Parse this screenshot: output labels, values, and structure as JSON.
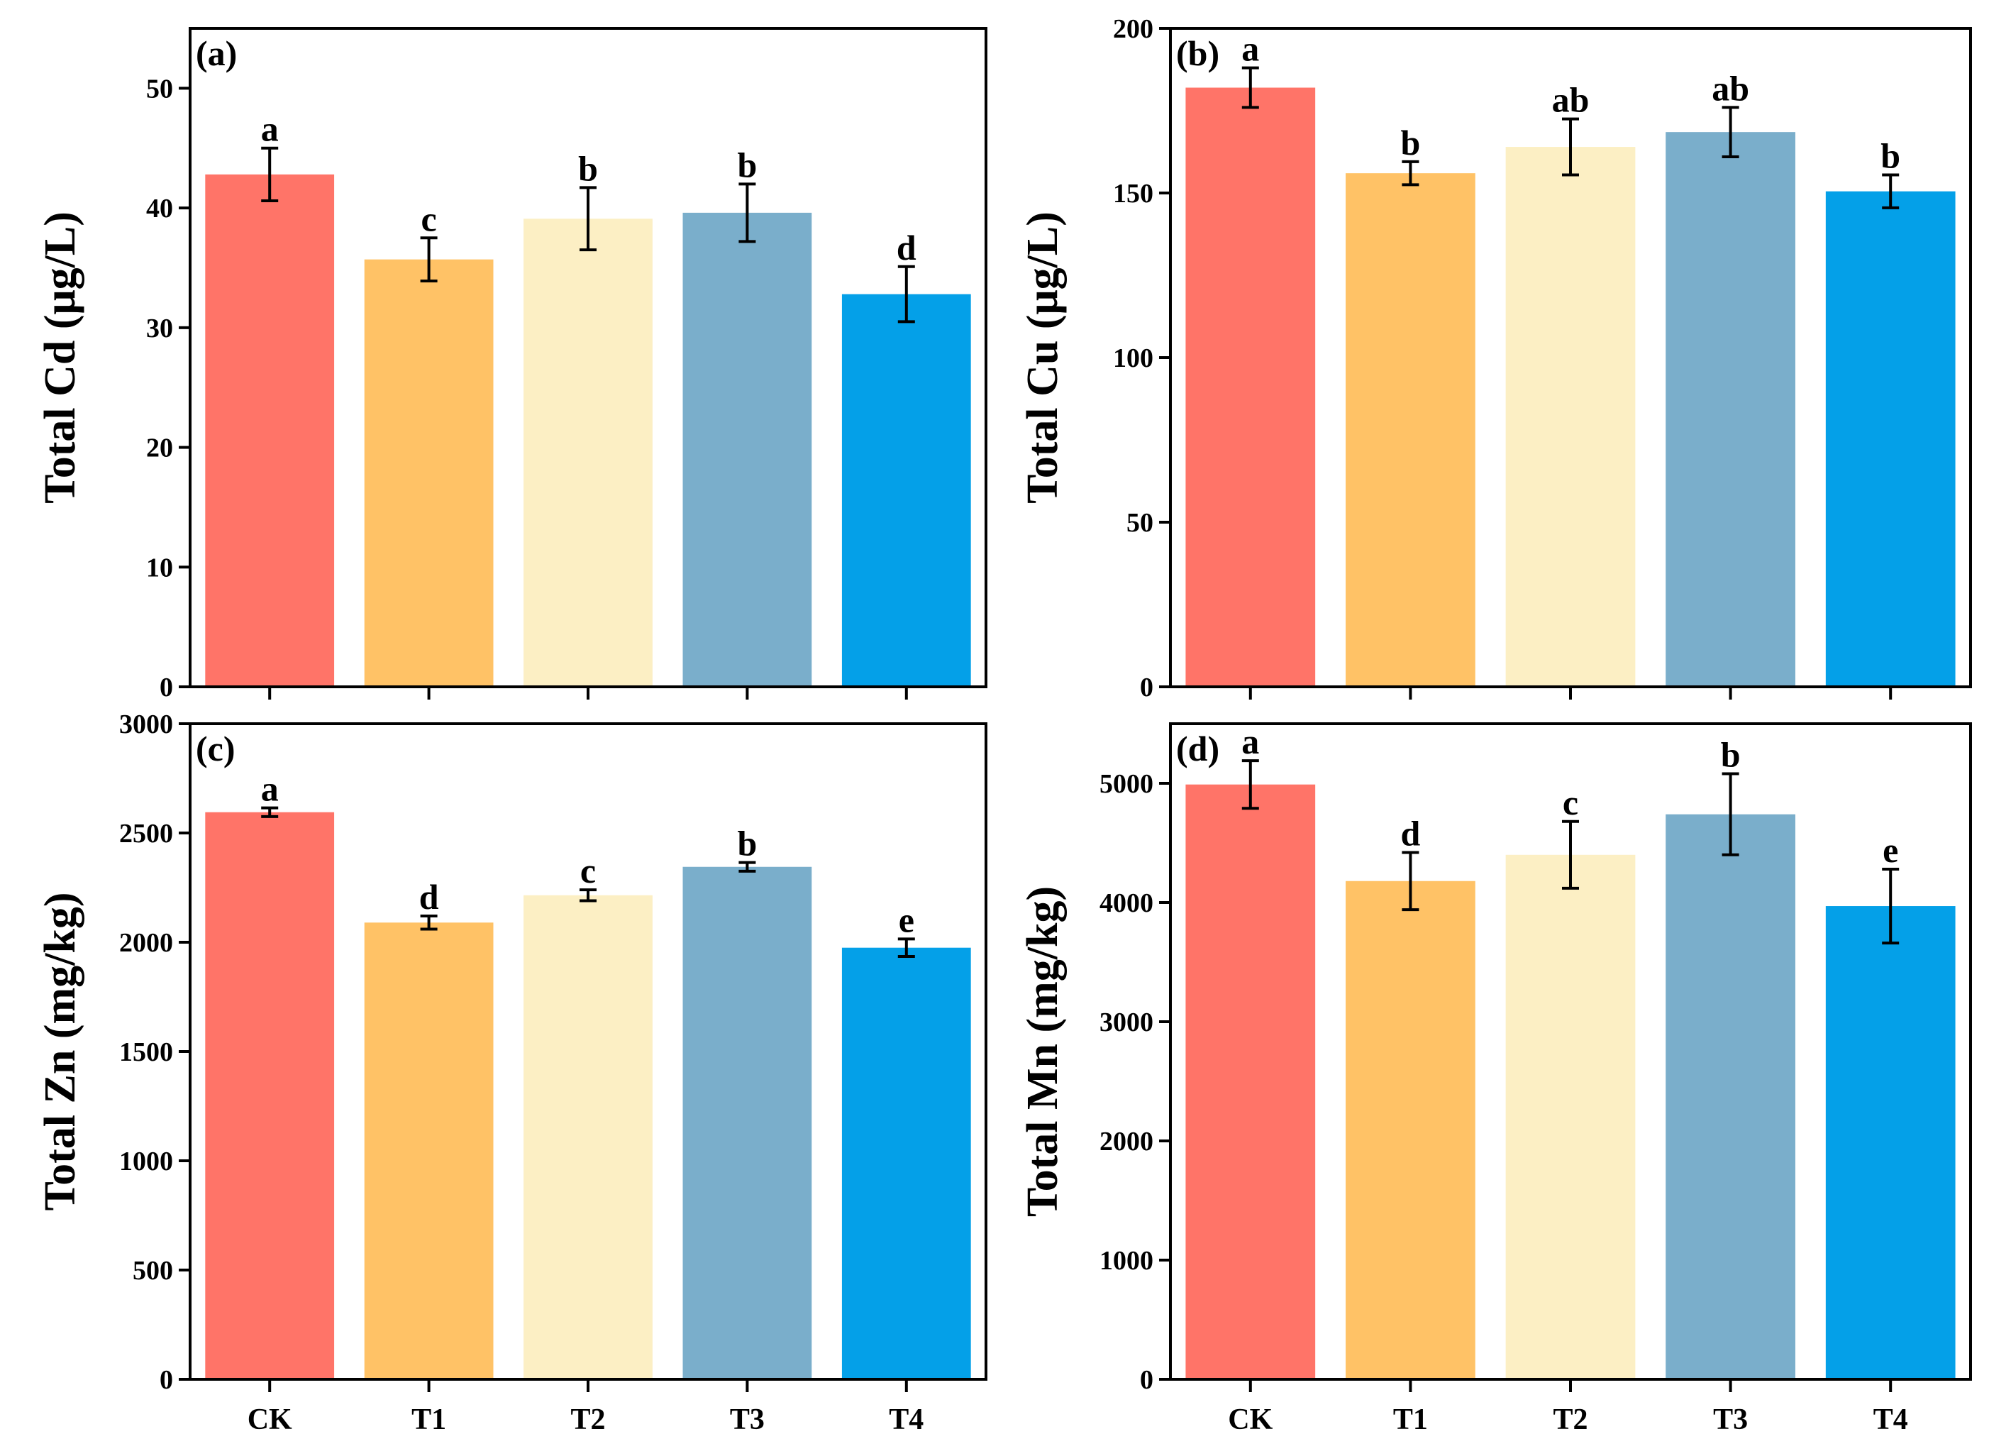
{
  "chart_data": [
    {
      "type": "bar",
      "panel_label": "(a)",
      "categories": [
        "CK",
        "T1",
        "T2",
        "T3",
        "T4"
      ],
      "values": [
        42.8,
        35.7,
        39.1,
        39.6,
        32.8
      ],
      "errors": [
        2.2,
        1.8,
        2.6,
        2.4,
        2.3
      ],
      "significance": [
        "a",
        "c",
        "b",
        "b",
        "d"
      ],
      "ylabel": "Total Cd (μg/L)",
      "ylim": [
        0,
        55
      ],
      "yticks": [
        0,
        10,
        20,
        30,
        40,
        50
      ],
      "show_category_labels": false
    },
    {
      "type": "bar",
      "panel_label": "(b)",
      "categories": [
        "CK",
        "T1",
        "T2",
        "T3",
        "T4"
      ],
      "values": [
        182,
        156,
        164,
        168.5,
        150.5
      ],
      "errors": [
        6,
        3.5,
        8.5,
        7.5,
        5
      ],
      "significance": [
        "a",
        "b",
        "ab",
        "ab",
        "b"
      ],
      "ylabel": "Total Cu (μg/L)",
      "ylim": [
        0,
        200
      ],
      "yticks": [
        0,
        50,
        100,
        150,
        200
      ],
      "show_category_labels": false
    },
    {
      "type": "bar",
      "panel_label": "(c)",
      "categories": [
        "CK",
        "T1",
        "T2",
        "T3",
        "T4"
      ],
      "values": [
        2595,
        2090,
        2215,
        2345,
        1975
      ],
      "errors": [
        20,
        30,
        25,
        20,
        40
      ],
      "significance": [
        "a",
        "d",
        "c",
        "b",
        "e"
      ],
      "ylabel": "Total Zn (mg/kg)",
      "ylim": [
        0,
        3000
      ],
      "yticks": [
        0,
        500,
        1000,
        1500,
        2000,
        2500,
        3000
      ],
      "show_category_labels": true
    },
    {
      "type": "bar",
      "panel_label": "(d)",
      "categories": [
        "CK",
        "T1",
        "T2",
        "T3",
        "T4"
      ],
      "values": [
        4990,
        4180,
        4400,
        4740,
        3970
      ],
      "errors": [
        200,
        240,
        280,
        340,
        310
      ],
      "significance": [
        "a",
        "d",
        "c",
        "b",
        "e"
      ],
      "ylabel": "Total Mn (mg/kg)",
      "ylim": [
        0,
        5500
      ],
      "yticks": [
        0,
        1000,
        2000,
        3000,
        4000,
        5000
      ],
      "show_category_labels": true
    }
  ],
  "colors": [
    "#ff7468",
    "#ffc266",
    "#fcefc4",
    "#7aaecb",
    "#04a0e8"
  ]
}
